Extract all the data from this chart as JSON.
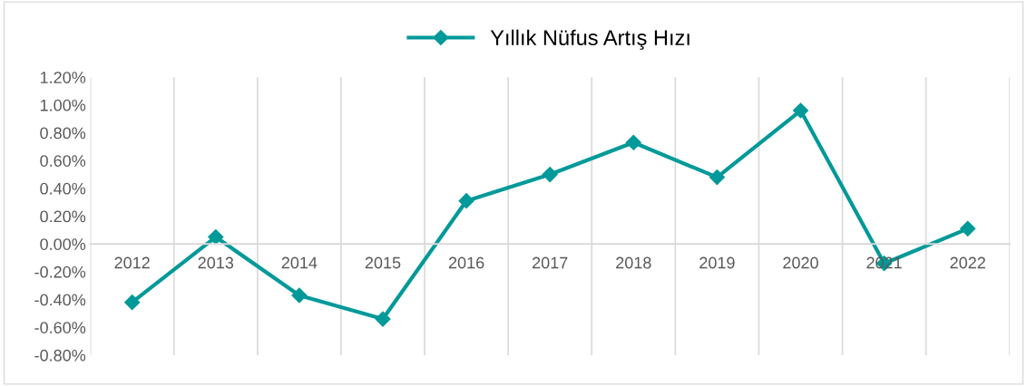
{
  "chart_data": {
    "type": "line",
    "categories": [
      "2012",
      "2013",
      "2014",
      "2015",
      "2016",
      "2017",
      "2018",
      "2019",
      "2020",
      "2021",
      "2022"
    ],
    "series": [
      {
        "name": "Yıllık Nüfus Artış Hızı",
        "color": "#009999",
        "values": [
          -0.42,
          0.05,
          -0.37,
          -0.54,
          0.31,
          0.5,
          0.73,
          0.48,
          0.96,
          -0.14,
          0.11
        ]
      }
    ],
    "ylim": [
      -0.8,
      1.2
    ],
    "yticks": [
      {
        "value": -0.8,
        "label": "-0.80%"
      },
      {
        "value": -0.6,
        "label": "-0.60%"
      },
      {
        "value": -0.4,
        "label": "-0.40%"
      },
      {
        "value": -0.2,
        "label": "-0.20%"
      },
      {
        "value": 0,
        "label": "0.00%"
      },
      {
        "value": 0.2,
        "label": "0.20%"
      },
      {
        "value": 0.4,
        "label": "0.40%"
      },
      {
        "value": 0.6,
        "label": "0.60%"
      },
      {
        "value": 0.8,
        "label": "0.80%"
      },
      {
        "value": 1.0,
        "label": "1.00%"
      },
      {
        "value": 1.2,
        "label": "1.20%"
      }
    ],
    "grid": "x",
    "legend": "top",
    "marker": "diamond",
    "line_style": "solid"
  }
}
